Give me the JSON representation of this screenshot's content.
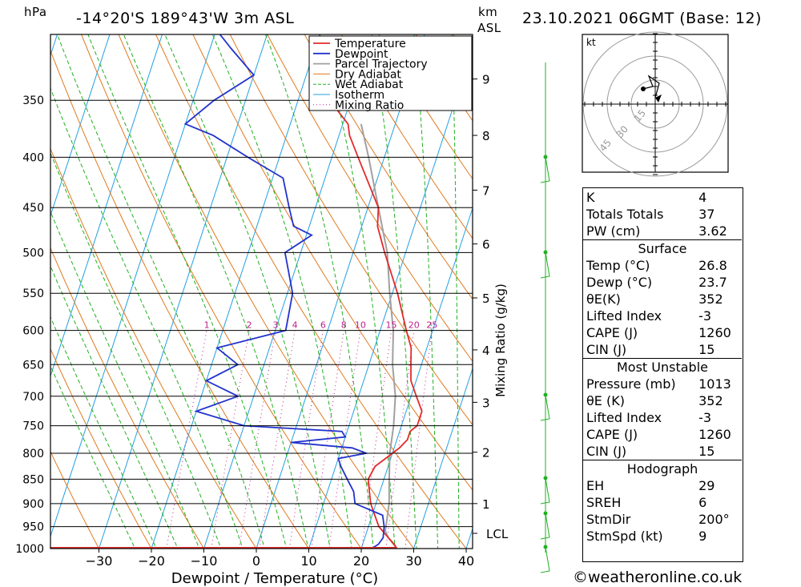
{
  "header": {
    "pressure_unit": "hPa",
    "location": "-14°20'S  189°43'W  3m  ASL",
    "km_label": "km",
    "asl_label": "ASL",
    "datetime": "23.10.2021  06GMT  (Base: 12)"
  },
  "footer": {
    "copyright": "©weatheronline.co.uk"
  },
  "colors": {
    "temperature": "#e32b2b",
    "dewpoint": "#2233cc",
    "parcel": "#a0a0a0",
    "dry_adiabat": "#e07a20",
    "wet_adiabat": "#20b020",
    "isotherm": "#22a0e0",
    "mixing_ratio": "#c0208f"
  },
  "chart_data": {
    "type": "skew-t",
    "xlabel": "Dewpoint / Temperature (°C)",
    "y2label": "Mixing Ratio (g/kg)",
    "pressure_ticks": [
      350,
      400,
      450,
      500,
      550,
      600,
      650,
      700,
      750,
      800,
      850,
      900,
      950,
      1000
    ],
    "temperature_ticks": [
      -30,
      -20,
      -10,
      0,
      10,
      20,
      30,
      40
    ],
    "height_ticks_km": [
      1,
      2,
      3,
      4,
      5,
      6,
      7,
      8,
      9
    ],
    "lcl_label": "LCL",
    "mixing_ratio_labels": [
      "1",
      "2",
      "3",
      "4",
      "6",
      "8",
      "10",
      "15",
      "20",
      "25"
    ],
    "legend": [
      "Temperature",
      "Dewpoint",
      "Parcel Trajectory",
      "Dry Adiabat",
      "Wet Adiabat",
      "Isotherm",
      "Mixing Ratio"
    ],
    "temperature_profile": [
      [
        1000,
        26.8
      ],
      [
        990,
        26
      ],
      [
        975,
        24.5
      ],
      [
        950,
        22
      ],
      [
        925,
        20.5
      ],
      [
        900,
        19
      ],
      [
        875,
        18
      ],
      [
        850,
        17
      ],
      [
        825,
        17.5
      ],
      [
        810,
        19
      ],
      [
        800,
        20
      ],
      [
        790,
        21
      ],
      [
        775,
        22
      ],
      [
        760,
        22
      ],
      [
        750,
        23
      ],
      [
        725,
        23
      ],
      [
        700,
        21
      ],
      [
        675,
        19
      ],
      [
        650,
        18
      ],
      [
        625,
        17
      ],
      [
        600,
        15
      ],
      [
        550,
        11
      ],
      [
        500,
        6
      ],
      [
        470,
        3
      ],
      [
        450,
        2
      ],
      [
        400,
        -5
      ],
      [
        380,
        -8
      ],
      [
        370,
        -9
      ],
      [
        350,
        -14
      ],
      [
        330,
        -17
      ],
      [
        310,
        -20
      ]
    ],
    "dewpoint_profile": [
      [
        1000,
        22
      ],
      [
        990,
        23
      ],
      [
        975,
        23.5
      ],
      [
        950,
        23
      ],
      [
        925,
        22
      ],
      [
        900,
        16
      ],
      [
        875,
        15
      ],
      [
        850,
        13
      ],
      [
        825,
        11
      ],
      [
        810,
        10
      ],
      [
        800,
        15
      ],
      [
        790,
        12
      ],
      [
        780,
        0
      ],
      [
        770,
        10
      ],
      [
        760,
        9
      ],
      [
        750,
        -10
      ],
      [
        725,
        -20
      ],
      [
        700,
        -13
      ],
      [
        675,
        -20
      ],
      [
        650,
        -15
      ],
      [
        625,
        -20
      ],
      [
        600,
        -8
      ],
      [
        550,
        -9
      ],
      [
        500,
        -13
      ],
      [
        480,
        -9
      ],
      [
        470,
        -13
      ],
      [
        450,
        -15
      ],
      [
        420,
        -18
      ],
      [
        400,
        -26
      ],
      [
        380,
        -34
      ],
      [
        370,
        -40
      ],
      [
        350,
        -36
      ],
      [
        330,
        -30
      ],
      [
        310,
        -36
      ],
      [
        300,
        -39
      ]
    ],
    "parcel_profile": [
      [
        1000,
        26.8
      ],
      [
        975,
        24.5
      ],
      [
        960,
        23.5
      ],
      [
        900,
        22.5
      ],
      [
        850,
        21
      ],
      [
        800,
        19.5
      ],
      [
        750,
        18.5
      ],
      [
        700,
        17
      ],
      [
        650,
        14.5
      ],
      [
        600,
        12.5
      ],
      [
        550,
        9.5
      ],
      [
        500,
        6.5
      ],
      [
        450,
        2
      ],
      [
        400,
        -3
      ],
      [
        370,
        -6.5
      ]
    ]
  },
  "hodograph": {
    "unit_label": "kt",
    "ring_labels": [
      "15",
      "30",
      "45"
    ]
  },
  "indices": [
    {
      "label": "K",
      "value": "4"
    },
    {
      "label": "Totals Totals",
      "value": "37"
    },
    {
      "label": "PW (cm)",
      "value": "3.62"
    }
  ],
  "surface": {
    "title": "Surface",
    "rows": [
      {
        "label": "Temp (°C)",
        "value": "26.8"
      },
      {
        "label": "Dewp (°C)",
        "value": "23.7"
      },
      {
        "label": "θE(K)",
        "value": "352"
      },
      {
        "label": "Lifted Index",
        "value": "-3"
      },
      {
        "label": "CAPE (J)",
        "value": "1260"
      },
      {
        "label": "CIN (J)",
        "value": "15"
      }
    ]
  },
  "most_unstable": {
    "title": "Most Unstable",
    "rows": [
      {
        "label": "Pressure (mb)",
        "value": "1013"
      },
      {
        "label": "θE (K)",
        "value": "352"
      },
      {
        "label": "Lifted Index",
        "value": "-3"
      },
      {
        "label": "CAPE (J)",
        "value": "1260"
      },
      {
        "label": "CIN (J)",
        "value": "15"
      }
    ]
  },
  "hodograph_stats": {
    "title": "Hodograph",
    "rows": [
      {
        "label": "EH",
        "value": "29"
      },
      {
        "label": "SREH",
        "value": "6"
      },
      {
        "label": "StmDir",
        "value": "200°"
      },
      {
        "label": "StmSpd (kt)",
        "value": "9"
      }
    ]
  }
}
